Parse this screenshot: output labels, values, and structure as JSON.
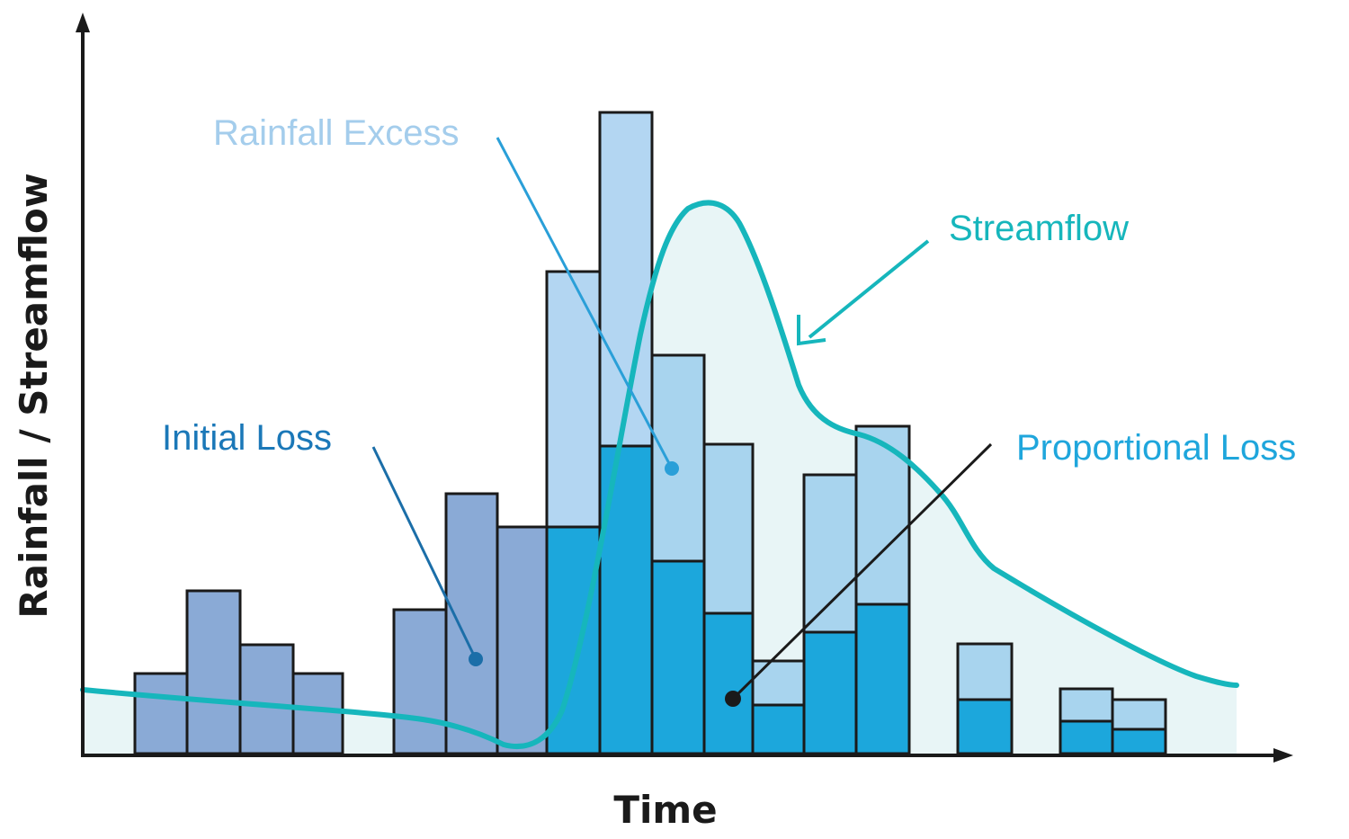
{
  "axes": {
    "x_label": "Time",
    "y_label": "Rainfall / Streamflow"
  },
  "labels": {
    "rainfall_excess": "Rainfall Excess",
    "streamflow": "Streamflow",
    "initial_loss": "Initial Loss",
    "proportional_loss": "Proportional Loss"
  },
  "colors": {
    "initial_loss": "#8aaad6",
    "rainfall_excess": "#a8d4ee",
    "proportional_loss": "#1ca7dc",
    "streamflow": "#16b6bc",
    "streamflow_fill": "#e8f5f6",
    "excess_label": "#a4cdec",
    "initial_label": "#1b78b8",
    "proportional_label": "#1fa6dc"
  }
}
